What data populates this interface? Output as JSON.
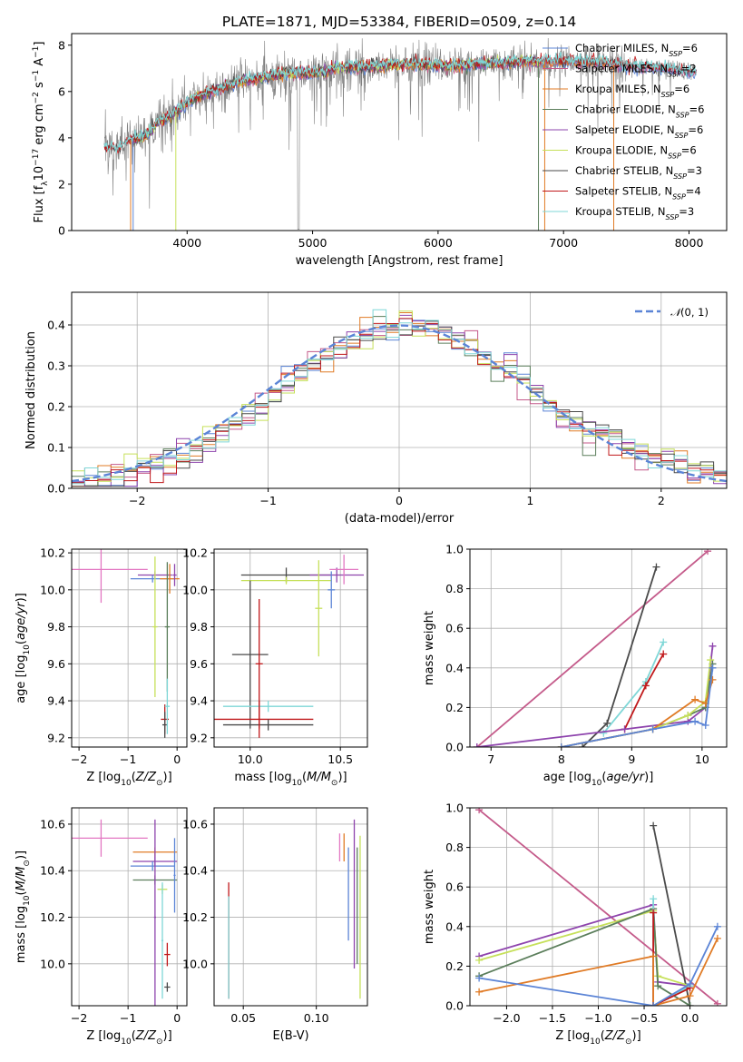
{
  "title": "PLATE=1871, MJD=53384, FIBERID=0509, z=0.14",
  "colors": {
    "chabrier_miles": "#5b84d6",
    "salpeter_miles": "#c45a8a",
    "kroupa_miles": "#e07b26",
    "chabrier_elodie": "#5b7e5b",
    "salpeter_elodie": "#8e44ad",
    "kroupa_elodie": "#c6e05a",
    "chabrier_stelib": "#4a4a4a",
    "salpeter_stelib": "#c0181a",
    "kroupa_stelib": "#7fd7d7",
    "data": "#808080",
    "pink": "#e377c2",
    "normal": "#5b84d6",
    "grid": "#b0b0b0"
  },
  "chart_data": [
    {
      "id": "spectrum",
      "type": "line",
      "xlabel": "wavelength [Angstrom, rest frame]",
      "ylabel": "Flux [f_λ 10^-17 erg cm^-2 s^-1 A^-1]",
      "xlim": [
        3080,
        8300
      ],
      "ylim": [
        0,
        8.5
      ],
      "xticks": [
        4000,
        5000,
        6000,
        7000,
        8000
      ],
      "yticks": [
        0,
        2,
        4,
        6,
        8
      ],
      "grid": false,
      "legend_position": "right",
      "legend": [
        {
          "label": "Chabrier MILES, N",
          "sub": "SSP",
          "value": "=6",
          "color_key": "chabrier_miles"
        },
        {
          "label": "Salpeter MILES, N",
          "sub": "SSP",
          "value": "=2",
          "color_key": "salpeter_miles"
        },
        {
          "label": "Kroupa MILES, N",
          "sub": "SSP",
          "value": "=6",
          "color_key": "kroupa_miles"
        },
        {
          "label": "Chabrier ELODIE, N",
          "sub": "SSP",
          "value": "=6",
          "color_key": "chabrier_elodie"
        },
        {
          "label": "Salpeter ELODIE, N",
          "sub": "SSP",
          "value": "=6",
          "color_key": "salpeter_elodie"
        },
        {
          "label": "Kroupa ELODIE, N",
          "sub": "SSP",
          "value": "=6",
          "color_key": "kroupa_elodie"
        },
        {
          "label": "Chabrier STELIB, N",
          "sub": "SSP",
          "value": "=3",
          "color_key": "chabrier_stelib"
        },
        {
          "label": "Salpeter STELIB, N",
          "sub": "SSP",
          "value": "=4",
          "color_key": "salpeter_stelib"
        },
        {
          "label": "Kroupa STELIB, N",
          "sub": "SSP",
          "value": "=3",
          "color_key": "kroupa_stelib"
        }
      ],
      "continuum": [
        [
          3340,
          3.6
        ],
        [
          3450,
          3.5
        ],
        [
          3550,
          3.9
        ],
        [
          3650,
          4.0
        ],
        [
          3750,
          4.6
        ],
        [
          3850,
          4.9
        ],
        [
          3950,
          5.3
        ],
        [
          4050,
          5.7
        ],
        [
          4200,
          6.0
        ],
        [
          4400,
          6.4
        ],
        [
          4600,
          6.6
        ],
        [
          4800,
          6.8
        ],
        [
          5000,
          6.8
        ],
        [
          5200,
          7.0
        ],
        [
          5500,
          7.1
        ],
        [
          5800,
          7.2
        ],
        [
          6100,
          7.1
        ],
        [
          6400,
          7.2
        ],
        [
          6700,
          7.3
        ],
        [
          6900,
          7.3
        ],
        [
          7200,
          7.3
        ],
        [
          7500,
          7.1
        ],
        [
          7800,
          7.0
        ],
        [
          8050,
          6.8
        ]
      ],
      "drops": [
        [
          3550,
          "kroupa_miles"
        ],
        [
          3570,
          "chabrier_miles"
        ],
        [
          3910,
          "kroupa_elodie"
        ],
        [
          6800,
          "chabrier_elodie"
        ],
        [
          6850,
          "kroupa_miles"
        ],
        [
          7400,
          "kroupa_miles"
        ]
      ]
    },
    {
      "id": "residual_hist",
      "type": "step",
      "xlabel": "(data-model)/error",
      "ylabel": "Normed distribution",
      "xlim": [
        -2.5,
        2.5
      ],
      "ylim": [
        0,
        0.48
      ],
      "xticks": [
        -2,
        -1,
        0,
        1,
        2
      ],
      "yticks": [
        0.0,
        0.1,
        0.2,
        0.3,
        0.4
      ],
      "grid": true,
      "legend_position": "top-right",
      "legend": "N(0,1)",
      "bin_width": 0.1
    },
    {
      "id": "age_vs_Z",
      "type": "errorbar",
      "xlabel": "Z [log10(Z/Z⊙)]",
      "ylabel": "age [log10(age/yr)]",
      "xlim": [
        -2.15,
        0.2
      ],
      "ylim": [
        9.15,
        10.22
      ],
      "xticks": [
        -2,
        -1,
        0
      ],
      "yticks": [
        9.2,
        9.4,
        9.6,
        9.8,
        10.0,
        10.2
      ],
      "grid": true,
      "points": [
        {
          "x": -1.55,
          "y": 10.11,
          "ex": 0.95,
          "ey": 0.18,
          "c": "pink"
        },
        {
          "x": -0.45,
          "y": 10.08,
          "ex": 0.35,
          "ey": 0.02,
          "c": "salpeter_elodie"
        },
        {
          "x": -0.5,
          "y": 10.06,
          "ex": 0.45,
          "ey": 0.02,
          "c": "chabrier_miles"
        },
        {
          "x": -0.15,
          "y": 10.06,
          "ex": 0.2,
          "ey": 0.08,
          "c": "kroupa_miles"
        },
        {
          "x": -0.45,
          "y": 9.8,
          "ex": 0.05,
          "ey": 0.38,
          "c": "kroupa_elodie"
        },
        {
          "x": -0.2,
          "y": 9.8,
          "ex": 0.05,
          "ey": 0.35,
          "c": "chabrier_elodie"
        },
        {
          "x": -0.25,
          "y": 9.3,
          "ex": 0.08,
          "ey": 0.08,
          "c": "salpeter_stelib"
        },
        {
          "x": -0.25,
          "y": 9.27,
          "ex": 0.05,
          "ey": 0.07,
          "c": "chabrier_stelib"
        },
        {
          "x": -0.2,
          "y": 9.37,
          "ex": 0.05,
          "ey": 0.15,
          "c": "kroupa_stelib"
        },
        {
          "x": -0.05,
          "y": 10.08,
          "ex": 0.04,
          "ey": 0.06,
          "c": "salpeter_elodie"
        }
      ]
    },
    {
      "id": "age_vs_mass",
      "type": "errorbar",
      "xlabel": "mass [log10(M/M⊙)]",
      "ylabel": "",
      "xlim": [
        9.8,
        10.65
      ],
      "ylim": [
        9.15,
        10.22
      ],
      "xticks": [
        10.0,
        10.5
      ],
      "yticks": [
        9.2,
        9.4,
        9.6,
        9.8,
        10.0,
        10.2
      ],
      "grid": true,
      "points": [
        {
          "x": 10.2,
          "y": 10.08,
          "ex": 0.25,
          "ey": 0.04,
          "c": "chabrier_stelib"
        },
        {
          "x": 10.48,
          "y": 10.08,
          "ex": 0.15,
          "ey": 0.04,
          "c": "salpeter_elodie"
        },
        {
          "x": 10.52,
          "y": 10.11,
          "ex": 0.08,
          "ey": 0.08,
          "c": "pink"
        },
        {
          "x": 10.2,
          "y": 10.05,
          "ex": 0.25,
          "ey": 0.02,
          "c": "kroupa_elodie"
        },
        {
          "x": 10.0,
          "y": 9.65,
          "ex": 0.1,
          "ey": 0.4,
          "c": "chabrier_stelib"
        },
        {
          "x": 10.05,
          "y": 9.3,
          "ex": 0.3,
          "ey": 0.1,
          "c": "salpeter_stelib"
        },
        {
          "x": 10.1,
          "y": 9.37,
          "ex": 0.25,
          "ey": 0.03,
          "c": "kroupa_stelib"
        },
        {
          "x": 10.1,
          "y": 9.27,
          "ex": 0.25,
          "ey": 0.03,
          "c": "chabrier_stelib"
        },
        {
          "x": 10.05,
          "y": 9.6,
          "ex": 0.02,
          "ey": 0.35,
          "c": "salpeter_stelib"
        },
        {
          "x": 10.38,
          "y": 9.9,
          "ex": 0.02,
          "ey": 0.26,
          "c": "kroupa_elodie"
        },
        {
          "x": 10.45,
          "y": 10.0,
          "ex": 0.02,
          "ey": 0.1,
          "c": "chabrier_miles"
        }
      ]
    },
    {
      "id": "mass_weight_vs_age",
      "type": "line",
      "xlabel": "age [log10(age/yr)]",
      "ylabel": "mass weight",
      "xlim": [
        6.7,
        10.35
      ],
      "ylim": [
        0,
        1.0
      ],
      "xticks": [
        7,
        8,
        9,
        10
      ],
      "yticks": [
        0.0,
        0.2,
        0.4,
        0.6,
        0.8,
        1.0
      ],
      "grid": true,
      "series": [
        {
          "c": "salpeter_miles",
          "pts": [
            [
              6.8,
              0.0
            ],
            [
              10.08,
              0.99
            ]
          ]
        },
        {
          "c": "chabrier_stelib",
          "pts": [
            [
              8.3,
              0.0
            ],
            [
              8.65,
              0.12
            ],
            [
              9.35,
              0.91
            ]
          ]
        },
        {
          "c": "kroupa_stelib",
          "pts": [
            [
              8.6,
              0.07
            ],
            [
              9.2,
              0.33
            ],
            [
              9.45,
              0.53
            ]
          ]
        },
        {
          "c": "salpeter_stelib",
          "pts": [
            [
              8.9,
              0.09
            ],
            [
              9.2,
              0.31
            ],
            [
              9.45,
              0.47
            ]
          ]
        },
        {
          "c": "salpeter_elodie",
          "pts": [
            [
              6.8,
              0.0
            ],
            [
              8.9,
              0.09
            ],
            [
              9.8,
              0.13
            ],
            [
              10.05,
              0.2
            ],
            [
              10.15,
              0.51
            ]
          ]
        },
        {
          "c": "chabrier_elodie",
          "pts": [
            [
              8.0,
              0.0
            ],
            [
              9.3,
              0.09
            ],
            [
              9.8,
              0.16
            ],
            [
              10.05,
              0.2
            ],
            [
              10.15,
              0.42
            ]
          ]
        },
        {
          "c": "kroupa_elodie",
          "pts": [
            [
              8.0,
              0.0
            ],
            [
              9.3,
              0.09
            ],
            [
              9.8,
              0.16
            ],
            [
              10.05,
              0.23
            ],
            [
              10.12,
              0.44
            ]
          ]
        },
        {
          "c": "kroupa_miles",
          "pts": [
            [
              8.0,
              0.0
            ],
            [
              9.3,
              0.09
            ],
            [
              9.9,
              0.24
            ],
            [
              10.05,
              0.22
            ],
            [
              10.15,
              0.34
            ]
          ]
        },
        {
          "c": "chabrier_miles",
          "pts": [
            [
              8.0,
              0.0
            ],
            [
              9.3,
              0.09
            ],
            [
              9.9,
              0.13
            ],
            [
              10.05,
              0.11
            ],
            [
              10.15,
              0.4
            ]
          ]
        }
      ]
    },
    {
      "id": "mass_vs_Z",
      "type": "errorbar",
      "xlabel": "Z [log10(Z/Z⊙)]",
      "ylabel": "mass [log10(M/M⊙)]",
      "xlim": [
        -2.15,
        0.2
      ],
      "ylim": [
        9.82,
        10.67
      ],
      "xticks": [
        -2,
        -1,
        0
      ],
      "yticks": [
        10.0,
        10.2,
        10.4,
        10.6
      ],
      "grid": true,
      "points": [
        {
          "x": -1.55,
          "y": 10.54,
          "ex": 0.95,
          "ey": 0.08,
          "c": "pink"
        },
        {
          "x": -0.45,
          "y": 10.48,
          "ex": 0.45,
          "ey": 0.02,
          "c": "kroupa_miles"
        },
        {
          "x": -0.45,
          "y": 10.44,
          "ex": 0.45,
          "ey": 0.02,
          "c": "salpeter_elodie"
        },
        {
          "x": -0.5,
          "y": 10.42,
          "ex": 0.45,
          "ey": 0.02,
          "c": "chabrier_miles"
        },
        {
          "x": -0.45,
          "y": 10.36,
          "ex": 0.45,
          "ey": 0.02,
          "c": "chabrier_elodie"
        },
        {
          "x": -0.45,
          "y": 10.2,
          "ex": 0.02,
          "ey": 0.42,
          "c": "salpeter_elodie"
        },
        {
          "x": -0.3,
          "y": 10.32,
          "ex": 0.1,
          "ey": 0.02,
          "c": "kroupa_elodie"
        },
        {
          "x": -0.2,
          "y": 10.04,
          "ex": 0.06,
          "ey": 0.05,
          "c": "salpeter_stelib"
        },
        {
          "x": -0.2,
          "y": 9.9,
          "ex": 0.06,
          "ey": 0.02,
          "c": "chabrier_stelib"
        },
        {
          "x": -0.3,
          "y": 10.1,
          "ex": 0.02,
          "ey": 0.25,
          "c": "kroupa_stelib"
        },
        {
          "x": -0.05,
          "y": 10.38,
          "ex": 0.02,
          "ey": 0.16,
          "c": "chabrier_miles"
        }
      ]
    },
    {
      "id": "mass_vs_ebv",
      "type": "errorbar",
      "xlabel": "E(B-V)",
      "ylabel": "",
      "xlim": [
        0.03,
        0.135
      ],
      "ylim": [
        9.82,
        10.67
      ],
      "xticks": [
        0.05,
        0.1
      ],
      "yticks": [
        10.0,
        10.2,
        10.4,
        10.6
      ],
      "grid": true,
      "points": [
        {
          "x": 0.04,
          "y": 10.1,
          "ex": 0.0,
          "ey": 0.25,
          "c": "salpeter_stelib"
        },
        {
          "x": 0.04,
          "y": 10.07,
          "ex": 0.0,
          "ey": 0.22,
          "c": "kroupa_stelib"
        },
        {
          "x": 0.116,
          "y": 10.5,
          "ex": 0.0,
          "ey": 0.06,
          "c": "pink"
        },
        {
          "x": 0.119,
          "y": 10.5,
          "ex": 0.0,
          "ey": 0.06,
          "c": "kroupa_miles"
        },
        {
          "x": 0.122,
          "y": 10.3,
          "ex": 0.0,
          "ey": 0.2,
          "c": "chabrier_miles"
        },
        {
          "x": 0.126,
          "y": 10.3,
          "ex": 0.0,
          "ey": 0.32,
          "c": "salpeter_elodie"
        },
        {
          "x": 0.13,
          "y": 10.2,
          "ex": 0.0,
          "ey": 0.35,
          "c": "kroupa_elodie"
        },
        {
          "x": 0.128,
          "y": 10.25,
          "ex": 0.0,
          "ey": 0.25,
          "c": "chabrier_elodie"
        }
      ]
    },
    {
      "id": "mass_weight_vs_Z",
      "type": "line",
      "xlabel": "Z [log10(Z/Z⊙)]",
      "ylabel": "mass weight",
      "xlim": [
        -2.4,
        0.4
      ],
      "ylim": [
        0,
        1.0
      ],
      "xticks": [
        -2.0,
        -1.5,
        -1.0,
        -0.5,
        0.0
      ],
      "yticks": [
        0.0,
        0.2,
        0.4,
        0.6,
        0.8,
        1.0
      ],
      "grid": true,
      "series": [
        {
          "c": "salpeter_miles",
          "pts": [
            [
              -2.3,
              0.99
            ],
            [
              0.3,
              0.01
            ]
          ]
        },
        {
          "c": "chabrier_stelib",
          "pts": [
            [
              -0.4,
              0.91
            ],
            [
              0.0,
              0.0
            ]
          ]
        },
        {
          "c": "salpeter_elodie",
          "pts": [
            [
              -2.3,
              0.25
            ],
            [
              -0.4,
              0.51
            ],
            [
              -0.35,
              0.12
            ],
            [
              0.0,
              0.1
            ]
          ]
        },
        {
          "c": "kroupa_elodie",
          "pts": [
            [
              -2.3,
              0.23
            ],
            [
              -0.4,
              0.48
            ],
            [
              -0.35,
              0.15
            ],
            [
              0.0,
              0.1
            ]
          ]
        },
        {
          "c": "chabrier_elodie",
          "pts": [
            [
              -2.3,
              0.15
            ],
            [
              -0.4,
              0.49
            ],
            [
              -0.35,
              0.1
            ],
            [
              0.0,
              0.0
            ]
          ]
        },
        {
          "c": "kroupa_stelib",
          "pts": [
            [
              -0.4,
              0.54
            ],
            [
              -0.4,
              0.0
            ],
            [
              0.0,
              0.1
            ]
          ]
        },
        {
          "c": "salpeter_stelib",
          "pts": [
            [
              -0.4,
              0.47
            ],
            [
              -0.4,
              0.0
            ],
            [
              0.0,
              0.09
            ]
          ]
        },
        {
          "c": "kroupa_miles",
          "pts": [
            [
              -2.3,
              0.07
            ],
            [
              -0.4,
              0.25
            ],
            [
              -0.4,
              0.0
            ],
            [
              0.0,
              0.05
            ],
            [
              0.3,
              0.34
            ]
          ]
        },
        {
          "c": "chabrier_miles",
          "pts": [
            [
              -2.3,
              0.14
            ],
            [
              -0.4,
              0.0
            ],
            [
              0.0,
              0.11
            ],
            [
              0.3,
              0.4
            ]
          ]
        }
      ]
    }
  ]
}
